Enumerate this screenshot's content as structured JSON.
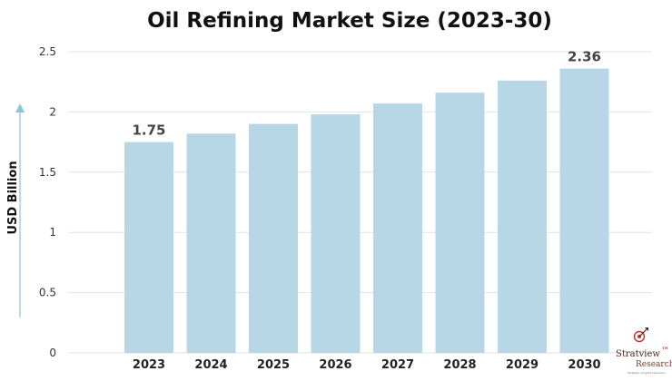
{
  "chart_data": {
    "type": "bar",
    "title": "Oil Refining Market Size (2023-30)",
    "xlabel": "",
    "ylabel": "USD Billion",
    "categories": [
      "2023",
      "2024",
      "2025",
      "2026",
      "2027",
      "2028",
      "2029",
      "2030"
    ],
    "values": [
      1.75,
      1.82,
      1.9,
      1.98,
      2.07,
      2.16,
      2.26,
      2.36
    ],
    "data_labels": [
      "1.75",
      "",
      "",
      "",
      "",
      "",
      "",
      "2.36"
    ],
    "ylim": [
      0,
      2.5
    ],
    "yticks": [
      "0",
      "0.5",
      "1",
      "1.5",
      "2",
      "2.5"
    ],
    "grid": true,
    "legend": "none",
    "colors": {
      "bar": "#b7d7e6",
      "axis_arrow": "#8cc4da",
      "grid": "#e2e2e2"
    }
  },
  "logo": {
    "name": "Stratview",
    "trademark": "™",
    "sub": "Research",
    "tagline": "Strategic Insights Delivered",
    "icon": "target-dart-icon"
  }
}
